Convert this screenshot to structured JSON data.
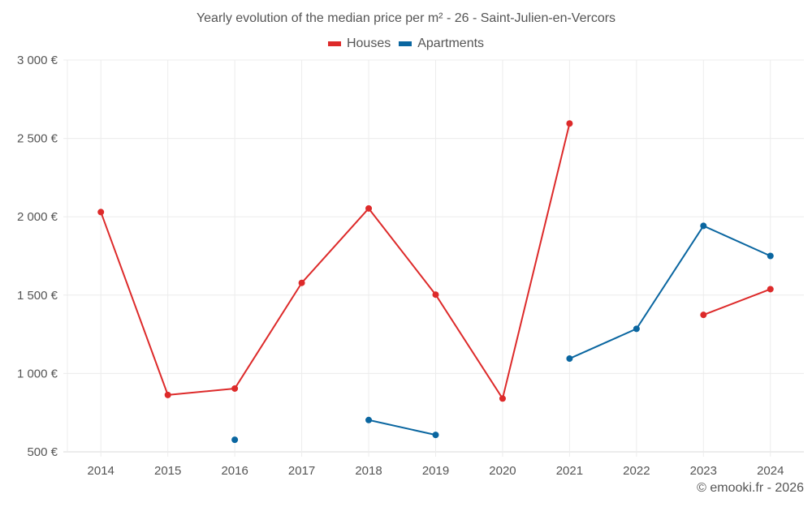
{
  "header": {
    "title": "Yearly evolution of the median price per m² - 26 - Saint-Julien-en-Vercors"
  },
  "legend": [
    {
      "label": "Houses",
      "color": "#dd2a2a"
    },
    {
      "label": "Apartments",
      "color": "#0a66a0"
    }
  ],
  "footer": {
    "credit": "© emooki.fr - 2026"
  },
  "axes": {
    "y_ticks": [
      "500 €",
      "1 000 €",
      "1 500 €",
      "2 000 €",
      "2 500 €",
      "3 000 €"
    ],
    "x_ticks": [
      "2014",
      "2015",
      "2016",
      "2017",
      "2018",
      "2019",
      "2020",
      "2021",
      "2022",
      "2023",
      "2024"
    ]
  },
  "chart_data": {
    "type": "line",
    "title": "Yearly evolution of the median price per m² - 26 - Saint-Julien-en-Vercors",
    "xlabel": "",
    "ylabel": "",
    "x": [
      2014,
      2015,
      2016,
      2017,
      2018,
      2019,
      2020,
      2021,
      2022,
      2023,
      2024
    ],
    "ylim": [
      500,
      3000
    ],
    "y_tick_values": [
      500,
      1000,
      1500,
      2000,
      2500,
      3000
    ],
    "grid": true,
    "legend_position": "top",
    "series": [
      {
        "name": "Houses",
        "color": "#dd2a2a",
        "values": [
          2030,
          863,
          904,
          1578,
          2053,
          1503,
          840,
          2595,
          null,
          1374,
          1538
        ]
      },
      {
        "name": "Apartments",
        "color": "#0a66a0",
        "values": [
          null,
          null,
          577,
          null,
          703,
          608,
          null,
          1095,
          1285,
          1942,
          1750
        ]
      }
    ]
  }
}
